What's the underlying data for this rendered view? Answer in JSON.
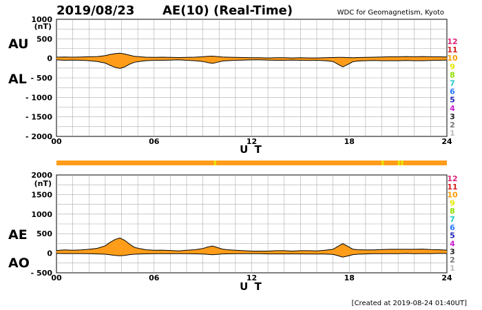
{
  "header": {
    "date": "2019/08/23",
    "title": "AE(10) (Real-Time)",
    "institution": "WDC for Geomagnetism, Kyoto"
  },
  "footer": {
    "created": "[Created at 2019-08-24 01:40UT]"
  },
  "station_legend": [
    {
      "label": "12",
      "color": "#e0237a"
    },
    {
      "label": "11",
      "color": "#d81e1e"
    },
    {
      "label": "10",
      "color": "#ff9d00"
    },
    {
      "label": "9",
      "color": "#e6e600"
    },
    {
      "label": "8",
      "color": "#8fe000"
    },
    {
      "label": "7",
      "color": "#20c8c8"
    },
    {
      "label": "6",
      "color": "#1e78ff"
    },
    {
      "label": "5",
      "color": "#1e1eb4"
    },
    {
      "label": "4",
      "color": "#c81ec8"
    },
    {
      "label": "3",
      "color": "#222222"
    },
    {
      "label": "2",
      "color": "#777777"
    },
    {
      "label": "1",
      "color": "#bbbbbb"
    }
  ],
  "colors": {
    "fill": "#ff9d1a",
    "line": "#000000",
    "grid": "#aaaaaa",
    "highlight": "#e6e600"
  },
  "chart_data": [
    {
      "type": "area",
      "name": "au-al",
      "upper_label": "AU",
      "lower_label": "AL",
      "unit": "(nT)",
      "xlabel": "U T",
      "xlim": [
        0,
        24
      ],
      "ylim": [
        -2000,
        1000
      ],
      "x_ticks": [
        0,
        6,
        12,
        18,
        24
      ],
      "x_tick_labels": [
        "00",
        "06",
        "12",
        "18",
        "24"
      ],
      "y_ticks": [
        1000,
        500,
        0,
        -500,
        -1000,
        -1500,
        -2000
      ],
      "y_tick_labels": [
        "1000",
        "500",
        "0",
        "- 500",
        "- 1000",
        "- 1500",
        "- 2000"
      ],
      "x": [
        0,
        0.5,
        1,
        1.5,
        2,
        2.5,
        3,
        3.3,
        3.6,
        3.9,
        4.2,
        4.5,
        4.8,
        5.1,
        5.5,
        6,
        6.5,
        7,
        7.5,
        8,
        8.5,
        9,
        9.3,
        9.6,
        9.9,
        10.2,
        10.5,
        11,
        11.5,
        12,
        12.5,
        13,
        13.5,
        14,
        14.5,
        15,
        15.5,
        16,
        16.5,
        17,
        17.3,
        17.6,
        17.9,
        18.2,
        18.5,
        19,
        19.5,
        20,
        20.5,
        21,
        21.5,
        22,
        22.5,
        23,
        23.5,
        24
      ],
      "series": [
        {
          "name": "AU",
          "values": [
            30,
            35,
            30,
            35,
            40,
            45,
            70,
            100,
            120,
            130,
            110,
            80,
            50,
            40,
            30,
            25,
            30,
            25,
            20,
            25,
            30,
            40,
            50,
            55,
            45,
            35,
            30,
            25,
            20,
            15,
            15,
            10,
            15,
            15,
            10,
            15,
            10,
            10,
            15,
            20,
            25,
            25,
            20,
            15,
            20,
            25,
            30,
            35,
            40,
            40,
            45,
            40,
            45,
            40,
            40,
            35
          ]
        },
        {
          "name": "AL",
          "values": [
            -40,
            -50,
            -45,
            -50,
            -60,
            -80,
            -120,
            -180,
            -230,
            -260,
            -220,
            -150,
            -100,
            -80,
            -60,
            -50,
            -50,
            -45,
            -40,
            -50,
            -60,
            -80,
            -110,
            -130,
            -100,
            -70,
            -60,
            -50,
            -45,
            -40,
            -40,
            -45,
            -50,
            -50,
            -45,
            -50,
            -55,
            -50,
            -60,
            -80,
            -150,
            -220,
            -160,
            -90,
            -70,
            -60,
            -55,
            -60,
            -60,
            -60,
            -55,
            -60,
            -60,
            -55,
            -50,
            -45
          ]
        }
      ]
    },
    {
      "type": "area",
      "name": "ae-ao",
      "upper_label": "AE",
      "lower_label": "AO",
      "unit": "(nT)",
      "xlabel": "U T",
      "xlim": [
        0,
        24
      ],
      "ylim": [
        -500,
        2000
      ],
      "x_ticks": [
        0,
        6,
        12,
        18,
        24
      ],
      "x_tick_labels": [
        "00",
        "06",
        "12",
        "18",
        "24"
      ],
      "y_ticks": [
        2000,
        1500,
        1000,
        500,
        0,
        -500
      ],
      "y_tick_labels": [
        "2000",
        "1500",
        "1000",
        "500",
        "0",
        "- 500"
      ],
      "x": [
        0,
        0.5,
        1,
        1.5,
        2,
        2.5,
        3,
        3.3,
        3.6,
        3.9,
        4.2,
        4.5,
        4.8,
        5.1,
        5.5,
        6,
        6.5,
        7,
        7.5,
        8,
        8.5,
        9,
        9.3,
        9.6,
        9.9,
        10.2,
        10.5,
        11,
        11.5,
        12,
        12.5,
        13,
        13.5,
        14,
        14.5,
        15,
        15.5,
        16,
        16.5,
        17,
        17.3,
        17.6,
        17.9,
        18.2,
        18.5,
        19,
        19.5,
        20,
        20.5,
        21,
        21.5,
        22,
        22.5,
        23,
        23.5,
        24
      ],
      "series": [
        {
          "name": "AE",
          "values": [
            70,
            85,
            75,
            85,
            100,
            125,
            190,
            280,
            350,
            390,
            330,
            230,
            150,
            120,
            90,
            75,
            80,
            70,
            60,
            75,
            90,
            120,
            160,
            185,
            145,
            105,
            90,
            75,
            65,
            55,
            55,
            55,
            65,
            65,
            55,
            65,
            65,
            60,
            75,
            100,
            175,
            245,
            180,
            105,
            90,
            85,
            85,
            95,
            100,
            100,
            100,
            100,
            105,
            95,
            90,
            80
          ]
        },
        {
          "name": "AO",
          "values": [
            -5,
            -8,
            -8,
            -8,
            -10,
            -18,
            -25,
            -40,
            -55,
            -65,
            -55,
            -35,
            -25,
            -20,
            -15,
            -12,
            -10,
            -10,
            -10,
            -12,
            -15,
            -20,
            -30,
            -38,
            -28,
            -18,
            -15,
            -12,
            -12,
            -12,
            -12,
            -18,
            -18,
            -18,
            -18,
            -18,
            -22,
            -20,
            -22,
            -30,
            -62,
            -98,
            -70,
            -38,
            -25,
            -18,
            -12,
            -12,
            -10,
            -10,
            -5,
            -10,
            -8,
            -8,
            -5,
            -5
          ]
        }
      ]
    }
  ],
  "status_bar": {
    "base_color": "#ff9d1a",
    "highlight_hours": [
      9.75,
      20.05,
      21.05,
      21.25
    ]
  }
}
